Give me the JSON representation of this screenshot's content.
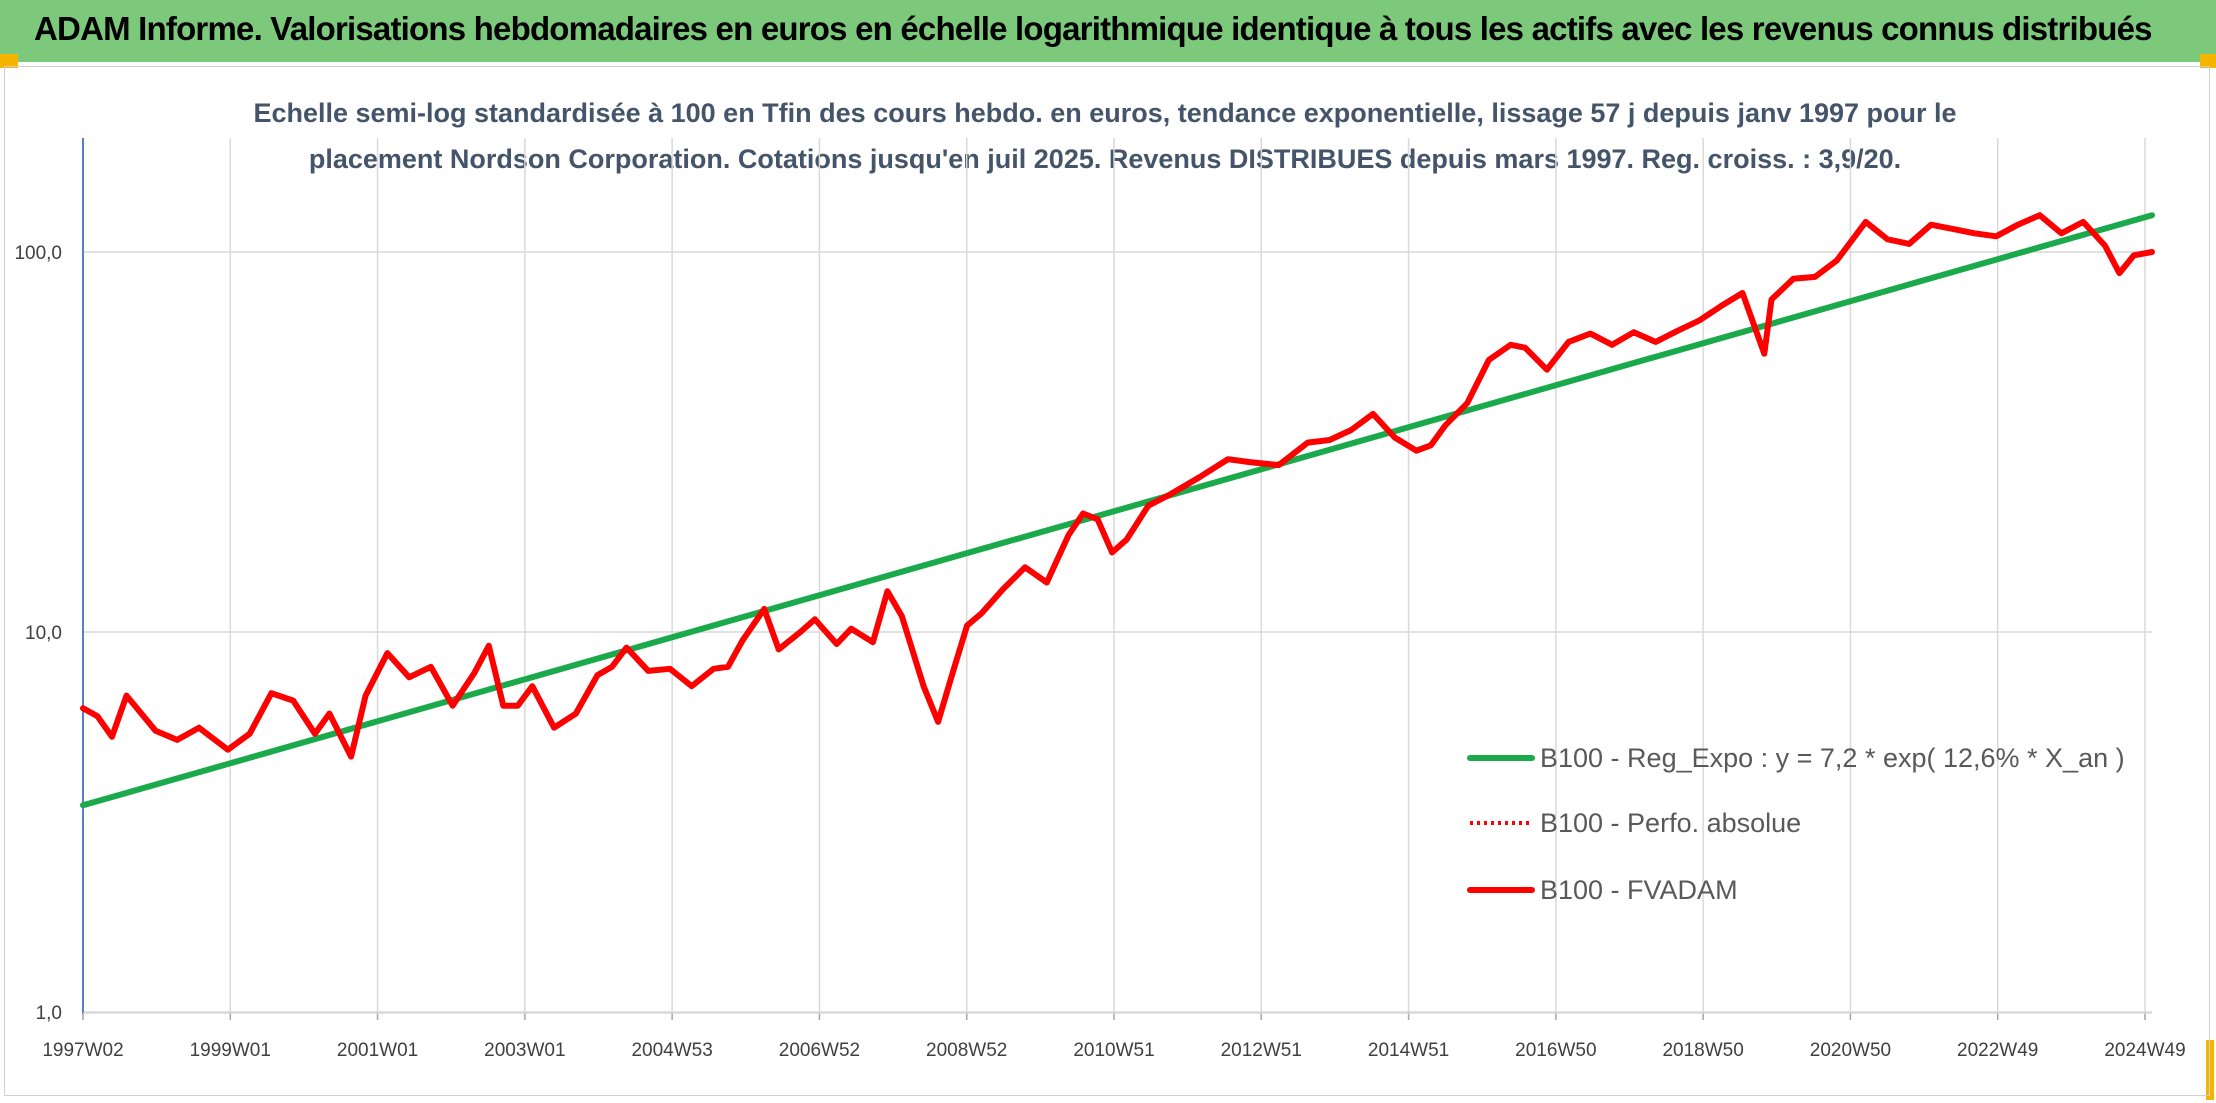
{
  "header": {
    "title": "ADAM Informe. Valorisations hebdomadaires en euros en échelle logarithmique identique à tous les actifs avec les revenus connus distribués"
  },
  "colors": {
    "header_bg": "#7dc97b",
    "corner_accent": "#f5b400",
    "trend": "#1aaa4b",
    "fvadam": "#ff0000",
    "perfo": "#ff0000",
    "grid": "#d9d9d9"
  },
  "chart_data": {
    "type": "line",
    "title_lines": [
      "Echelle semi-log standardisée à 100 en Tfin des cours hebdo. en euros, tendance exponentielle, lissage 57 j depuis janv 1997 pour le",
      "placement Nordson Corporation. Cotations jusqu'en juil 2025. Revenus DISTRIBUES depuis mars 1997. Reg. croiss. : 3,9/20."
    ],
    "y_scale": "log",
    "ylim": [
      1,
      200
    ],
    "y_ticks": [
      "1,0",
      "10,0",
      "100,0"
    ],
    "x_ticks": [
      "1997W02",
      "1999W01",
      "2001W01",
      "2003W01",
      "2004W53",
      "2006W52",
      "2008W52",
      "2010W51",
      "2012W51",
      "2014W51",
      "2016W50",
      "2018W50",
      "2020W50",
      "2022W49",
      "2024W49"
    ],
    "x_range": [
      1997.0,
      2025.55
    ],
    "grid": "vertical at x ticks, horizontal at y ticks",
    "legend_position": "lower-right",
    "series": [
      {
        "name": "B100 - Reg_Expo : y = 7,2 * exp( 12,6% *  X_an )",
        "style": "solid",
        "x": [
          1997.0,
          2025.55
        ],
        "values": [
          3.5,
          125
        ]
      },
      {
        "name": "B100 - Perfo. absolue",
        "style": "dotted",
        "x": [],
        "values": []
      },
      {
        "name": "B100 - FVADAM",
        "style": "solid",
        "x": [
          1997.0,
          1997.2,
          1997.4,
          1997.6,
          1998.0,
          1998.3,
          1998.6,
          1999.0,
          1999.3,
          1999.6,
          1999.9,
          2000.2,
          2000.4,
          2000.7,
          2000.9,
          2001.2,
          2001.5,
          2001.8,
          2002.1,
          2002.4,
          2002.6,
          2002.8,
          2003.0,
          2003.2,
          2003.5,
          2003.8,
          2004.1,
          2004.3,
          2004.5,
          2004.8,
          2005.1,
          2005.4,
          2005.7,
          2005.9,
          2006.1,
          2006.4,
          2006.6,
          2006.9,
          2007.1,
          2007.4,
          2007.6,
          2007.9,
          2008.1,
          2008.3,
          2008.6,
          2008.8,
          2009.0,
          2009.2,
          2009.4,
          2009.7,
          2010.0,
          2010.3,
          2010.6,
          2010.8,
          2011.0,
          2011.2,
          2011.4,
          2011.7,
          2012.0,
          2012.4,
          2012.8,
          2013.1,
          2013.5,
          2013.9,
          2014.2,
          2014.5,
          2014.8,
          2015.1,
          2015.4,
          2015.6,
          2015.8,
          2016.1,
          2016.4,
          2016.7,
          2016.9,
          2017.2,
          2017.5,
          2017.8,
          2018.1,
          2018.4,
          2018.7,
          2019.0,
          2019.3,
          2019.6,
          2019.9,
          2020.2,
          2020.3,
          2020.6,
          2020.9,
          2021.2,
          2021.6,
          2021.9,
          2022.2,
          2022.5,
          2022.8,
          2023.1,
          2023.4,
          2023.7,
          2024.0,
          2024.3,
          2024.6,
          2024.9,
          2025.1,
          2025.3,
          2025.55
        ],
        "values": [
          6.3,
          6.0,
          5.3,
          6.8,
          5.5,
          5.2,
          5.6,
          4.9,
          5.4,
          6.9,
          6.6,
          5.4,
          6.1,
          4.7,
          6.8,
          8.8,
          7.6,
          8.1,
          6.4,
          7.8,
          9.2,
          6.4,
          6.4,
          7.2,
          5.6,
          6.1,
          7.7,
          8.1,
          9.1,
          7.9,
          8.0,
          7.2,
          8.0,
          8.1,
          9.5,
          11.5,
          9.0,
          10.0,
          10.8,
          9.3,
          10.2,
          9.4,
          12.8,
          11.0,
          7.2,
          5.8,
          7.8,
          10.4,
          11.2,
          13.0,
          14.8,
          13.5,
          18.0,
          20.5,
          19.8,
          16.2,
          17.5,
          21.5,
          23.0,
          25.5,
          28.5,
          28.0,
          27.5,
          31.5,
          32.0,
          34.0,
          37.5,
          32.5,
          30.0,
          31.0,
          35.0,
          40.0,
          52.0,
          57.0,
          56.0,
          49.0,
          58.0,
          61.0,
          57.0,
          61.5,
          58.0,
          62.0,
          66.0,
          72.0,
          78.0,
          54.0,
          75.0,
          85.0,
          86.0,
          95.0,
          120.0,
          108.0,
          105.0,
          118.0,
          115.0,
          112.0,
          110.0,
          118.0,
          125.0,
          112.0,
          120.0,
          104.0,
          88.0,
          98.0,
          100.0
        ]
      }
    ]
  }
}
